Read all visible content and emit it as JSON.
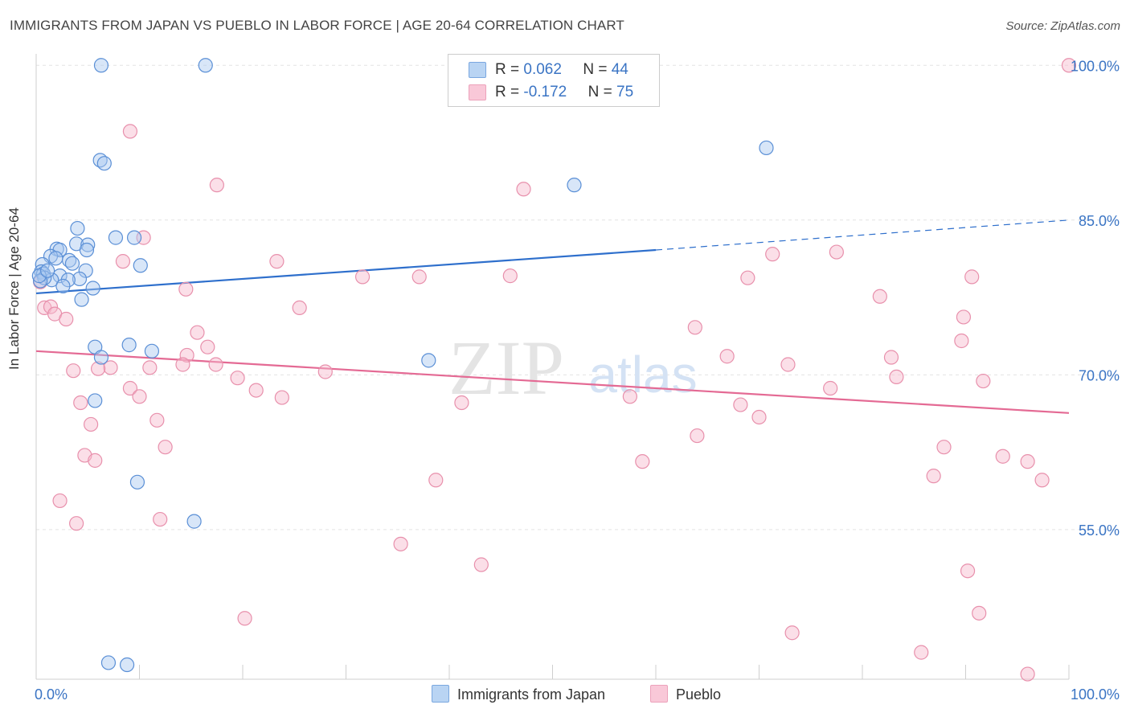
{
  "title": "IMMIGRANTS FROM JAPAN VS PUEBLO IN LABOR FORCE | AGE 20-64 CORRELATION CHART",
  "source": "Source: ZipAtlas.com",
  "watermark": {
    "zip": "ZIP",
    "atlas": "atlas"
  },
  "legend": {
    "rows": [
      {
        "r_label": "R = ",
        "r_value": "0.062",
        "n_label": "N = ",
        "n_value": "44"
      },
      {
        "r_label": "R = ",
        "r_value": "-0.172",
        "n_label": "N = ",
        "n_value": "75"
      }
    ]
  },
  "bottom_legend": {
    "japan": "Immigrants from Japan",
    "pueblo": "Pueblo"
  },
  "colors": {
    "japan_fill": "#a8c8f0",
    "japan_stroke": "#5a8fd6",
    "japan_line": "#2e6fcc",
    "pueblo_fill": "#f6b8cc",
    "pueblo_stroke": "#e890ac",
    "pueblo_line": "#e46a94",
    "axis_label": "#3a74c4"
  },
  "chart_data": {
    "type": "scatter",
    "title": "IMMIGRANTS FROM JAPAN VS PUEBLO IN LABOR FORCE | AGE 20-64 CORRELATION CHART",
    "xlabel": "",
    "ylabel": "In Labor Force | Age 20-64",
    "xlim": [
      0,
      100
    ],
    "ylim": [
      40.5,
      101.5
    ],
    "x_tick_labels": [
      "0.0%",
      "100.0%"
    ],
    "y_ticks": [
      55,
      70,
      85,
      100
    ],
    "y_tick_labels": [
      "55.0%",
      "70.0%",
      "85.0%",
      "100.0%"
    ],
    "series": [
      {
        "name": "Immigrants from Japan",
        "r": 0.062,
        "n": 44,
        "trend": {
          "x0": 0,
          "y0": 77.9,
          "x1": 60,
          "y1": 82.1,
          "dash_to_x": 100,
          "dash_to_y": 85.0
        },
        "points": [
          [
            6.3,
            100
          ],
          [
            16.4,
            100
          ],
          [
            6.2,
            90.8
          ],
          [
            6.6,
            90.5
          ],
          [
            52.1,
            88.4
          ],
          [
            70.7,
            92.0
          ],
          [
            4.0,
            84.2
          ],
          [
            7.7,
            83.3
          ],
          [
            9.5,
            83.3
          ],
          [
            3.9,
            82.7
          ],
          [
            5.0,
            82.6
          ],
          [
            2.0,
            82.2
          ],
          [
            2.3,
            82.1
          ],
          [
            1.4,
            81.5
          ],
          [
            1.9,
            81.3
          ],
          [
            4.9,
            82.1
          ],
          [
            3.2,
            81.1
          ],
          [
            0.6,
            80.7
          ],
          [
            3.5,
            80.8
          ],
          [
            10.1,
            80.6
          ],
          [
            0.5,
            80.0
          ],
          [
            0.7,
            79.8
          ],
          [
            2.3,
            79.6
          ],
          [
            4.8,
            80.1
          ],
          [
            1.5,
            79.2
          ],
          [
            4.2,
            79.3
          ],
          [
            3.1,
            79.2
          ],
          [
            0.8,
            79.4
          ],
          [
            0.4,
            79.1
          ],
          [
            2.6,
            78.6
          ],
          [
            5.5,
            78.4
          ],
          [
            4.4,
            77.3
          ],
          [
            5.7,
            72.7
          ],
          [
            9.0,
            72.9
          ],
          [
            11.2,
            72.3
          ],
          [
            6.3,
            71.7
          ],
          [
            38.0,
            71.4
          ],
          [
            5.7,
            67.5
          ],
          [
            9.8,
            59.6
          ],
          [
            15.3,
            55.8
          ],
          [
            7.0,
            42.1
          ],
          [
            8.8,
            41.9
          ],
          [
            0.3,
            79.6
          ],
          [
            1.1,
            80.1
          ]
        ]
      },
      {
        "name": "Pueblo",
        "r": -0.172,
        "n": 75,
        "trend": {
          "x0": 0,
          "y0": 72.3,
          "x1": 100,
          "y1": 66.3
        },
        "points": [
          [
            9.1,
            93.6
          ],
          [
            17.5,
            88.4
          ],
          [
            47.2,
            88.0
          ],
          [
            100,
            100
          ],
          [
            10.4,
            83.3
          ],
          [
            8.4,
            81.0
          ],
          [
            23.3,
            81.0
          ],
          [
            71.3,
            81.7
          ],
          [
            77.5,
            81.9
          ],
          [
            0.4,
            79.0
          ],
          [
            14.5,
            78.3
          ],
          [
            31.6,
            79.5
          ],
          [
            37.1,
            79.5
          ],
          [
            45.9,
            79.6
          ],
          [
            68.9,
            79.4
          ],
          [
            90.6,
            79.5
          ],
          [
            0.8,
            76.5
          ],
          [
            1.4,
            76.6
          ],
          [
            1.8,
            75.9
          ],
          [
            2.9,
            75.4
          ],
          [
            25.5,
            76.5
          ],
          [
            81.7,
            77.6
          ],
          [
            89.8,
            75.6
          ],
          [
            15.6,
            74.1
          ],
          [
            16.6,
            72.7
          ],
          [
            63.8,
            74.6
          ],
          [
            89.6,
            73.3
          ],
          [
            14.6,
            71.9
          ],
          [
            14.2,
            71.0
          ],
          [
            17.4,
            71.0
          ],
          [
            7.2,
            70.7
          ],
          [
            11.0,
            70.7
          ],
          [
            3.6,
            70.4
          ],
          [
            66.9,
            71.8
          ],
          [
            72.8,
            71.0
          ],
          [
            82.8,
            71.7
          ],
          [
            83.3,
            69.8
          ],
          [
            9.1,
            68.7
          ],
          [
            10.0,
            67.9
          ],
          [
            19.5,
            69.7
          ],
          [
            21.3,
            68.5
          ],
          [
            23.8,
            67.8
          ],
          [
            57.5,
            67.9
          ],
          [
            68.2,
            67.1
          ],
          [
            76.9,
            68.7
          ],
          [
            91.7,
            69.4
          ],
          [
            4.3,
            67.3
          ],
          [
            41.2,
            67.3
          ],
          [
            5.3,
            65.2
          ],
          [
            11.7,
            65.6
          ],
          [
            70.0,
            65.9
          ],
          [
            64.0,
            64.1
          ],
          [
            12.5,
            63.0
          ],
          [
            4.7,
            62.2
          ],
          [
            5.7,
            61.7
          ],
          [
            58.7,
            61.6
          ],
          [
            87.9,
            63.0
          ],
          [
            93.6,
            62.1
          ],
          [
            96.0,
            61.6
          ],
          [
            38.7,
            59.8
          ],
          [
            86.9,
            60.2
          ],
          [
            97.4,
            59.8
          ],
          [
            2.3,
            57.8
          ],
          [
            3.9,
            55.6
          ],
          [
            12.0,
            56.0
          ],
          [
            35.3,
            53.6
          ],
          [
            43.1,
            51.6
          ],
          [
            90.2,
            51.0
          ],
          [
            20.2,
            46.4
          ],
          [
            73.2,
            45.0
          ],
          [
            91.3,
            46.9
          ],
          [
            85.7,
            43.1
          ],
          [
            96.0,
            41.0
          ],
          [
            6.0,
            70.6
          ],
          [
            28.0,
            70.3
          ]
        ]
      }
    ]
  }
}
